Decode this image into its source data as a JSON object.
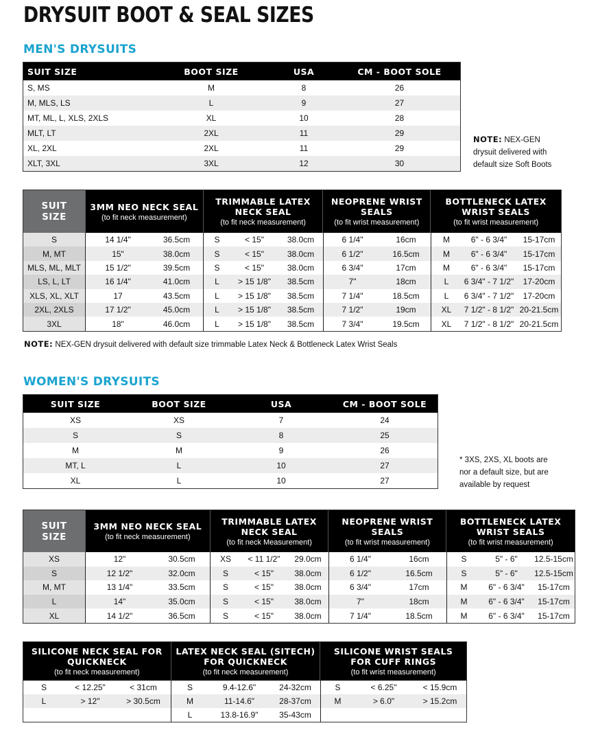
{
  "title": "DRYSUIT BOOT & SEAL SIZES",
  "men": {
    "heading": "MEN'S DRYSUITS",
    "boot_table": {
      "headers": [
        "SUIT SIZE",
        "BOOT SIZE",
        "USA",
        "CM - BOOT SOLE"
      ],
      "rows": [
        [
          "S, MS",
          "M",
          "8",
          "26"
        ],
        [
          "M, MLS, LS",
          "L",
          "9",
          "27"
        ],
        [
          "MT, ML, L, XLS, 2XLS",
          "XL",
          "10",
          "28"
        ],
        [
          "MLT, LT",
          "2XL",
          "11",
          "29"
        ],
        [
          "XL, 2XL",
          "2XL",
          "11",
          "29"
        ],
        [
          "XLT, 3XL",
          "3XL",
          "12",
          "30"
        ]
      ]
    },
    "boot_note": {
      "label": "NOTE:",
      "text": "NEX-GEN drysuit delivered with default size Soft Boots"
    },
    "seal_table": {
      "groups": [
        {
          "title": "SUIT SIZE",
          "subtitle": ""
        },
        {
          "title": "3MM NEO NECK SEAL",
          "subtitle": "(to fit neck measurement)"
        },
        {
          "title": "TRIMMABLE LATEX NECK SEAL",
          "subtitle": "(to fit neck measurement)"
        },
        {
          "title": "NEOPRENE WRIST SEALS",
          "subtitle": "(to fit wrist measurement)"
        },
        {
          "title": "BOTTLENECK LATEX WRIST SEALS",
          "subtitle": "(to fit wrist measurement)"
        }
      ],
      "rows": [
        [
          "S",
          "14 1/4\"",
          "36.5cm",
          "S",
          "< 15\"",
          "38.0cm",
          "6 1/4\"",
          "16cm",
          "M",
          "6\" - 6 3/4\"",
          "15-17cm"
        ],
        [
          "M, MT",
          "15\"",
          "38.0cm",
          "S",
          "< 15\"",
          "38.0cm",
          "6 1/2\"",
          "16.5cm",
          "M",
          "6\" - 6 3/4\"",
          "15-17cm"
        ],
        [
          "MLS, ML, MLT",
          "15 1/2\"",
          "39.5cm",
          "S",
          "< 15\"",
          "38.0cm",
          "6 3/4\"",
          "17cm",
          "M",
          "6\" - 6 3/4\"",
          "15-17cm"
        ],
        [
          "LS, L, LT",
          "16 1/4\"",
          "41.0cm",
          "L",
          "> 15 1/8\"",
          "38.5cm",
          "7\"",
          "18cm",
          "L",
          "6 3/4\" - 7 1/2\"",
          "17-20cm"
        ],
        [
          "XLS, XL, XLT",
          "17",
          "43.5cm",
          "L",
          "> 15 1/8\"",
          "38.5cm",
          "7 1/4\"",
          "18.5cm",
          "L",
          "6 3/4\" - 7 1/2\"",
          "17-20cm"
        ],
        [
          "2XL, 2XLS",
          "17 1/2\"",
          "45.0cm",
          "L",
          "> 15 1/8\"",
          "38.5cm",
          "7 1/2\"",
          "19cm",
          "XL",
          "7 1/2\" - 8 1/2\"",
          "20-21.5cm"
        ],
        [
          "3XL",
          "18\"",
          "46.0cm",
          "L",
          "> 15 1/8\"",
          "38.5cm",
          "7 3/4\"",
          "19.5cm",
          "XL",
          "7 1/2\" - 8 1/2\"",
          "20-21.5cm"
        ]
      ]
    },
    "seal_note": {
      "label": "NOTE:",
      "text": "NEX-GEN drysuit delivered with default size trimmable Latex Neck & Bottleneck Latex Wrist Seals"
    }
  },
  "women": {
    "heading": "WOMEN'S DRYSUITS",
    "boot_table": {
      "headers": [
        "SUIT SIZE",
        "BOOT SIZE",
        "USA",
        "CM - BOOT SOLE"
      ],
      "rows": [
        [
          "XS",
          "XS",
          "7",
          "24"
        ],
        [
          "S",
          "S",
          "8",
          "25"
        ],
        [
          "M",
          "M",
          "9",
          "26"
        ],
        [
          "MT, L",
          "L",
          "10",
          "27"
        ],
        [
          "XL",
          "L",
          "10",
          "27"
        ]
      ]
    },
    "boot_note": {
      "text": "* 3XS, 2XS, XL boots are nor a default size, but are available by request"
    },
    "seal_table": {
      "groups": [
        {
          "title": "SUIT SIZE",
          "subtitle": ""
        },
        {
          "title": "3MM NEO NECK SEAL",
          "subtitle": "(to fit neck measurement)"
        },
        {
          "title": "TRIMMABLE LATEX NECK SEAL",
          "subtitle": "(to fit neck Measurement)"
        },
        {
          "title": "NEOPRENE WRIST SEALS",
          "subtitle": "(to fit wrist measurement)"
        },
        {
          "title": "BOTTLENECK LATEX WRIST SEALS",
          "subtitle": "(to fit wrist measurement)"
        }
      ],
      "rows": [
        [
          "XS",
          "12\"",
          "30.5cm",
          "XS",
          "< 11 1/2\"",
          "29.0cm",
          "6 1/4\"",
          "16cm",
          "S",
          "5\" - 6\"",
          "12.5-15cm"
        ],
        [
          "S",
          "12 1/2\"",
          "32.0cm",
          "S",
          "< 15\"",
          "38.0cm",
          "6 1/2\"",
          "16.5cm",
          "S",
          "5\" - 6\"",
          "12.5-15cm"
        ],
        [
          "M, MT",
          "13 1/4\"",
          "33.5cm",
          "S",
          "< 15\"",
          "38.0cm",
          "6 3/4\"",
          "17cm",
          "M",
          "6\" - 6 3/4\"",
          "15-17cm"
        ],
        [
          "L",
          "14\"",
          "35.0cm",
          "S",
          "< 15\"",
          "38.0cm",
          "7\"",
          "18cm",
          "M",
          "6\" - 6 3/4\"",
          "15-17cm"
        ],
        [
          "XL",
          "14 1/2\"",
          "36.5cm",
          "S",
          "< 15\"",
          "38.0cm",
          "7 1/4\"",
          "18.5cm",
          "M",
          "6\" - 6 3/4\"",
          "15-17cm"
        ]
      ]
    }
  },
  "quickneck_table": {
    "groups": [
      {
        "title": "SILICONE NECK SEAL FOR QUICKNECK",
        "subtitle": "(to fit neck measurement)"
      },
      {
        "title": "LATEX NECK SEAL (SITECH) FOR QUICKNECK",
        "subtitle": "(to fit neck measurement)"
      },
      {
        "title": "SILICONE WRIST SEALS FOR CUFF RINGS",
        "subtitle": "(to fit wrist measurement)"
      }
    ],
    "rows": [
      [
        "S",
        "< 12.25\"",
        "< 31cm",
        "S",
        "9.4-12.6\"",
        "24-32cm",
        "S",
        "< 6.25\"",
        "< 15.9cm"
      ],
      [
        "L",
        "> 12\"",
        "> 30.5cm",
        "M",
        "11-14.6\"",
        "28-37cm",
        "M",
        "> 6.0\"",
        "> 15.2cm"
      ],
      [
        "",
        "",
        "",
        "L",
        "13.8-16.9\"",
        "35-43cm",
        "",
        "",
        ""
      ]
    ]
  }
}
